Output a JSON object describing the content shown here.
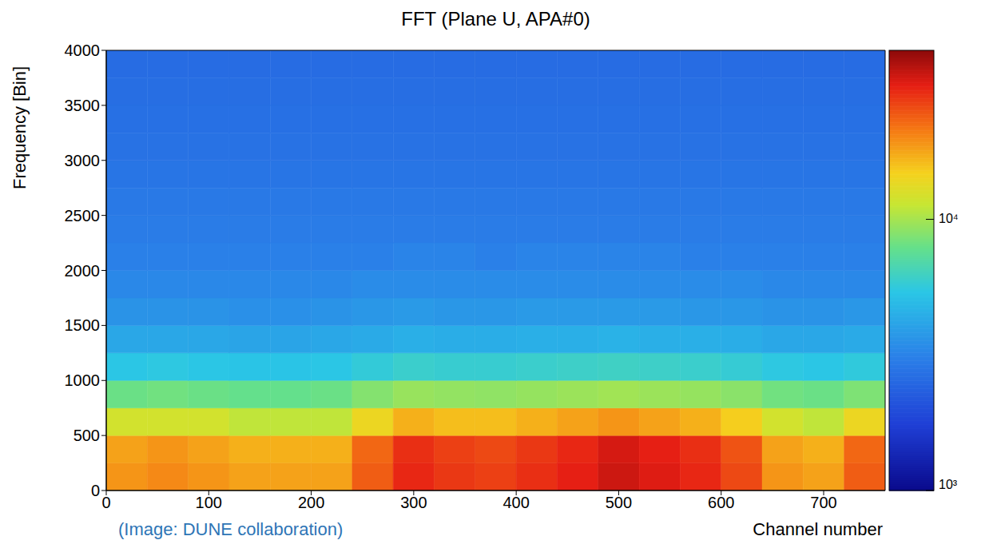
{
  "chart_data": {
    "type": "heatmap",
    "title": "FFT (Plane U, APA#0)",
    "x_label": "Channel number",
    "y_label": "Frequency [Bin]",
    "annotations": [
      "(Image: DUNE collaboration)"
    ],
    "xlim": [
      0,
      760
    ],
    "xticks": [
      0,
      100,
      200,
      300,
      400,
      500,
      600,
      700
    ],
    "ylim": [
      0,
      4000
    ],
    "yticks": [
      0,
      500,
      1000,
      1500,
      2000,
      2500,
      3000,
      3500,
      4000
    ],
    "grid": false,
    "x_bins": [
      0,
      40,
      80,
      120,
      160,
      200,
      240,
      280,
      320,
      360,
      400,
      440,
      480,
      520,
      560,
      600,
      640,
      680,
      720,
      760
    ],
    "y_bins": [
      0,
      250,
      500,
      750,
      1000,
      1250,
      1500,
      1750,
      2000,
      2250,
      2500,
      2750,
      3000,
      3250,
      3500,
      3750,
      4000
    ],
    "z": [
      [
        19000,
        20000,
        19000,
        18000,
        18000,
        18000,
        24000,
        30000,
        28000,
        27000,
        29000,
        31000,
        34000,
        32000,
        30000,
        26000,
        19000,
        18000,
        24000
      ],
      [
        18000,
        19000,
        18000,
        17000,
        17000,
        17000,
        23000,
        29000,
        27000,
        26000,
        28000,
        30000,
        33000,
        31000,
        29000,
        25000,
        18000,
        17000,
        23000
      ],
      [
        12000,
        12000,
        12000,
        11000,
        11000,
        11000,
        14000,
        17000,
        16000,
        16000,
        17000,
        18000,
        19000,
        18000,
        17000,
        15000,
        12000,
        11000,
        14000
      ],
      [
        8000,
        8200,
        8000,
        7800,
        7800,
        8000,
        8800,
        9500,
        9300,
        9200,
        9400,
        9600,
        9800,
        9600,
        9400,
        9000,
        8200,
        8000,
        8600
      ],
      [
        5400,
        5500,
        5400,
        5300,
        5300,
        5400,
        5700,
        6000,
        5900,
        5900,
        6000,
        6100,
        6200,
        6100,
        6000,
        5800,
        5500,
        5400,
        5600
      ],
      [
        4200,
        4200,
        4200,
        4100,
        4100,
        4200,
        4300,
        4500,
        4400,
        4400,
        4500,
        4500,
        4600,
        4500,
        4500,
        4400,
        4200,
        4200,
        4300
      ],
      [
        3600,
        3600,
        3600,
        3500,
        3500,
        3600,
        3700,
        3800,
        3700,
        3700,
        3800,
        3800,
        3800,
        3800,
        3700,
        3700,
        3600,
        3600,
        3700
      ],
      [
        3300,
        3300,
        3300,
        3300,
        3300,
        3300,
        3400,
        3400,
        3400,
        3400,
        3400,
        3400,
        3400,
        3400,
        3400,
        3400,
        3300,
        3300,
        3300
      ],
      [
        3100,
        3100,
        3100,
        3100,
        3100,
        3100,
        3100,
        3200,
        3200,
        3100,
        3200,
        3200,
        3200,
        3200,
        3100,
        3100,
        3100,
        3100,
        3100
      ],
      [
        3000,
        3000,
        3000,
        3000,
        3000,
        3000,
        3000,
        3000,
        3000,
        3000,
        3000,
        3000,
        3000,
        3000,
        3000,
        3000,
        3000,
        3000,
        3000
      ],
      [
        2900,
        2900,
        2900,
        2900,
        2900,
        2900,
        2900,
        2900,
        2900,
        2900,
        2900,
        2900,
        2900,
        2900,
        2900,
        2900,
        2900,
        2900,
        2900
      ],
      [
        2800,
        2800,
        2800,
        2800,
        2800,
        2800,
        2800,
        2800,
        2800,
        2800,
        2800,
        2800,
        2800,
        2800,
        2800,
        2800,
        2800,
        2800,
        2800
      ],
      [
        2750,
        2750,
        2750,
        2750,
        2750,
        2750,
        2750,
        2750,
        2750,
        2750,
        2750,
        2750,
        2750,
        2750,
        2750,
        2750,
        2750,
        2750,
        2750
      ],
      [
        2700,
        2700,
        2700,
        2700,
        2700,
        2700,
        2700,
        2700,
        2700,
        2700,
        2700,
        2700,
        2700,
        2700,
        2700,
        2700,
        2700,
        2700,
        2700
      ],
      [
        2650,
        2650,
        2650,
        2650,
        2650,
        2650,
        2650,
        2650,
        2650,
        2650,
        2650,
        2650,
        2650,
        2650,
        2650,
        2650,
        2650,
        2650,
        2650
      ],
      [
        2600,
        2600,
        2600,
        2600,
        2600,
        2600,
        2600,
        2600,
        2600,
        2600,
        2600,
        2600,
        2600,
        2600,
        2600,
        2600,
        2600,
        2600,
        2600
      ]
    ],
    "colorbar": {
      "range": [
        1000,
        42000
      ],
      "ticks": [
        {
          "value": 1000,
          "label": "10³"
        },
        {
          "value": 10000,
          "label": "10⁴"
        }
      ],
      "log": true
    }
  }
}
